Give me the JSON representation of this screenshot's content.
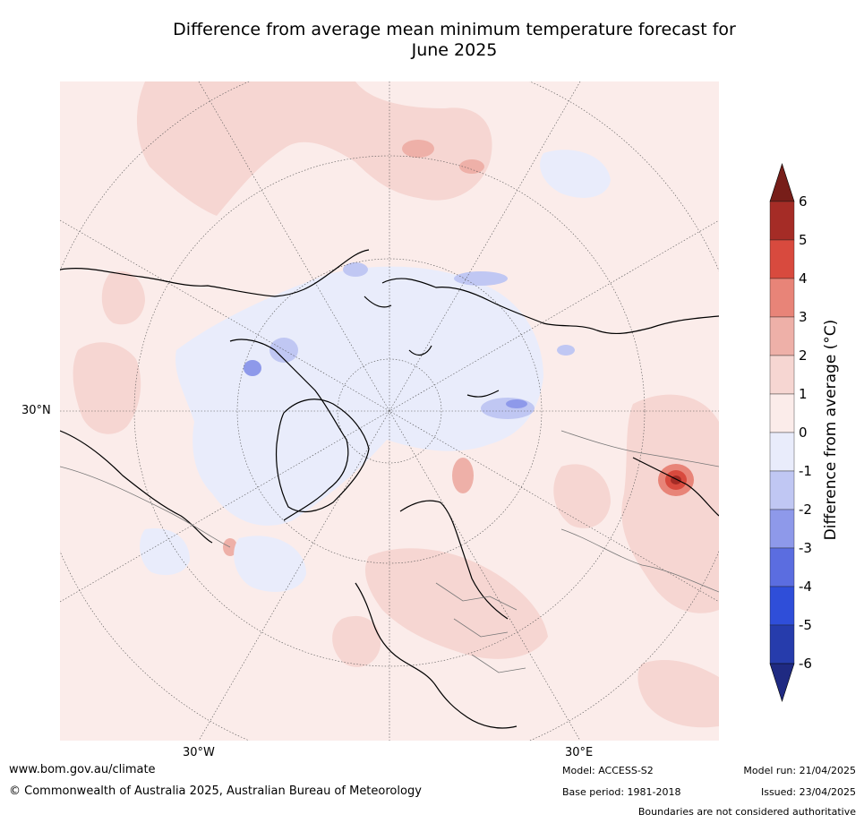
{
  "title_line1": "Difference from average mean minimum temperature forecast for",
  "title_line2": "June 2025",
  "graticule": {
    "lat_label": "30°N",
    "lon_label_w": "30°W",
    "lon_label_e": "30°E"
  },
  "colorbar": {
    "label": "Difference from average (°C)",
    "ticks": [
      "6",
      "5",
      "4",
      "3",
      "2",
      "1",
      "0",
      "-1",
      "-2",
      "-3",
      "-4",
      "-5",
      "-6"
    ],
    "colors": [
      "#a52c26",
      "#d84a3e",
      "#e88478",
      "#eeb0a8",
      "#f6d6d2",
      "#fbecea",
      "#e9ecfb",
      "#c0c7f3",
      "#8e99ea",
      "#5b6de0",
      "#2f4ed9",
      "#263cac"
    ],
    "over_color": "#771e19",
    "under_color": "#1f2a82"
  },
  "map_colors": {
    "background": "#fbecea",
    "warm1": "#f6d6d2",
    "warm2": "#eeb0a8",
    "warm3": "#e88478",
    "warm4": "#d84a3e",
    "warm5": "#a52c26",
    "cool1": "#e9ecfb",
    "cool2": "#c0c7f3",
    "cool3": "#8e99ea",
    "cool4": "#5b6de0"
  },
  "footer": {
    "website": "www.bom.gov.au/climate",
    "copyright": "© Commonwealth of Australia 2025, Australian Bureau of Meteorology",
    "model": "Model: ACCESS-S2",
    "base_period": "Base period: 1981-2018",
    "model_run": "Model run: 21/04/2025",
    "issued": "Issued: 23/04/2025",
    "disclaimer": "Boundaries are not considered authoritative"
  }
}
